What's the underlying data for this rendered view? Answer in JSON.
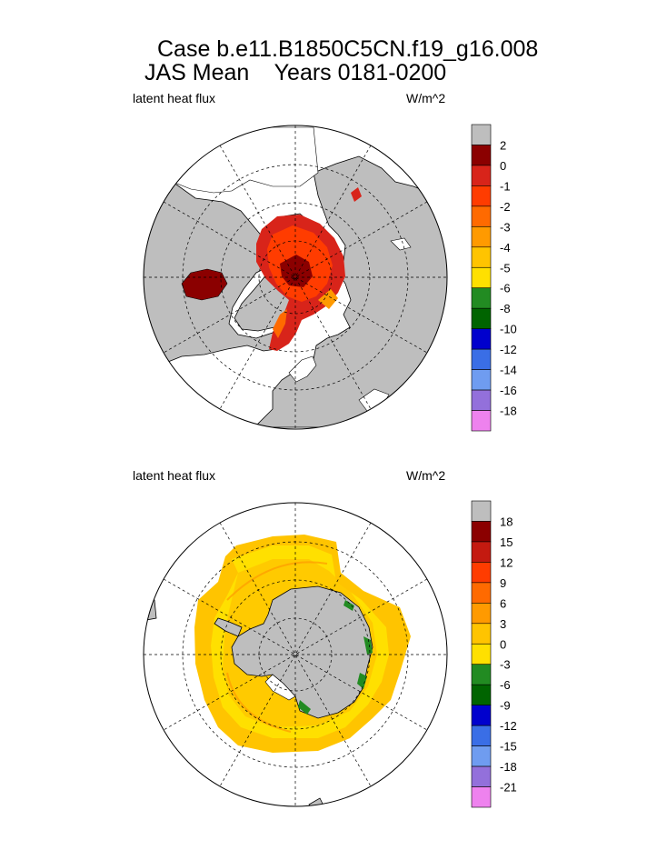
{
  "figure": {
    "title_line1": "Case b.e11.B1850C5CN.f19_g16.008",
    "title_line2": "JAS Mean    Years 0181-0200"
  },
  "panels": [
    {
      "name": "north",
      "left_label": "latent heat flux",
      "right_label": "W/m^2",
      "colorbar": {
        "colors": [
          "#bebebe",
          "#8b0000",
          "#d8241a",
          "#ff3c00",
          "#ff6a00",
          "#ff9a00",
          "#ffc400",
          "#ffe000",
          "#228b22",
          "#006400",
          "#0000cd",
          "#3a6ee6",
          "#6f9cf0",
          "#9370db",
          "#ee82ee"
        ],
        "labels": [
          "2",
          "0",
          "-1",
          "-2",
          "-3",
          "-4",
          "-5",
          "-6",
          "-8",
          "-10",
          "-12",
          "-14",
          "-16",
          "-18"
        ]
      }
    },
    {
      "name": "south",
      "left_label": "latent heat flux",
      "right_label": "W/m^2",
      "colorbar": {
        "colors": [
          "#bebebe",
          "#8b0000",
          "#c41a10",
          "#ff3c00",
          "#ff6a00",
          "#ff9a00",
          "#ffc400",
          "#ffe000",
          "#228b22",
          "#006400",
          "#0000cd",
          "#3a6ee6",
          "#6f9cf0",
          "#9370db",
          "#ee82ee"
        ],
        "labels": [
          "18",
          "15",
          "12",
          "9",
          "6",
          "3",
          "0",
          "-3",
          "-6",
          "-9",
          "-12",
          "-15",
          "-18",
          "-21"
        ]
      }
    }
  ]
}
